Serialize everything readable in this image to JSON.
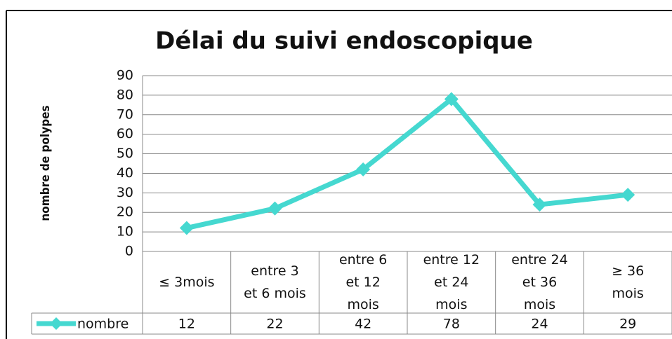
{
  "chart_data": {
    "type": "line",
    "title": "Délai du suivi endoscopique",
    "y_label": "nombre de polypes",
    "categories": [
      "≤ 3mois",
      "entre 3 et 6 mois",
      "entre 6 et 12 mois",
      "entre 12 et 24 mois",
      "entre 24 et 36 mois",
      "≥ 36 mois"
    ],
    "series": [
      {
        "name": "nombre",
        "color": "#45d8d0",
        "values": [
          12,
          22,
          42,
          78,
          24,
          29
        ]
      }
    ],
    "ylim": [
      0,
      90
    ],
    "yticks": [
      0,
      10,
      20,
      30,
      40,
      50,
      60,
      70,
      80,
      90
    ],
    "grid": true,
    "data_table": true
  }
}
